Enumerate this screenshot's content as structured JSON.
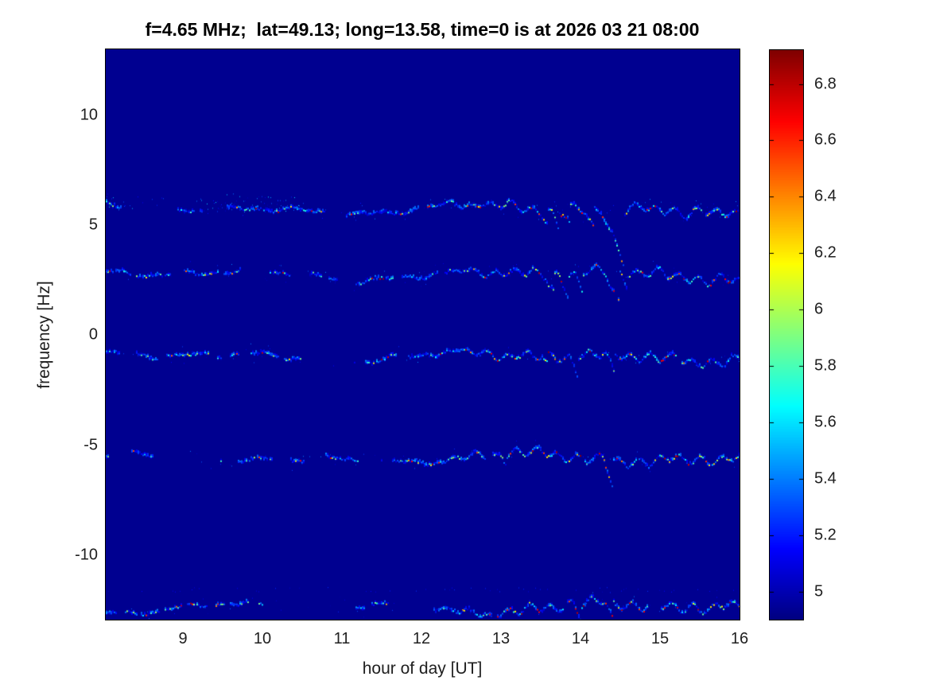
{
  "chart_data": {
    "type": "heatmap",
    "subtype": "doppler-spectrogram",
    "title": "f=4.65 MHz;  lat=49.13; long=13.58, time=0 is at 2026 03 21 08:00",
    "xlabel": "hour of day [UT]",
    "ylabel": "frequency [Hz]",
    "xlim": [
      8.03,
      16
    ],
    "ylim": [
      -12.93,
      13.0
    ],
    "x_ticks": [
      9,
      10,
      11,
      12,
      13,
      14,
      15,
      16
    ],
    "y_ticks": [
      10,
      5,
      0,
      -5,
      -10
    ],
    "grid": false,
    "background_color": "#000090",
    "colorbar": {
      "position": "right",
      "ticks": [
        6.8,
        6.6,
        6.4,
        6.2,
        6,
        5.8,
        5.6,
        5.4,
        5.2,
        5
      ],
      "clim": [
        4.9,
        6.92
      ],
      "colormap": "jet"
    },
    "bands": [
      {
        "name": "doppler-trace-plus5.8Hz",
        "center_hz": 5.75,
        "left_patchiness": 0.5,
        "speckle": 0.22,
        "clouds": [
          {
            "hour_start": 9.2,
            "hour_end": 10.45,
            "spread_hz": 0.85,
            "density": 0.5
          },
          {
            "hour_start": 8.03,
            "hour_end": 8.35,
            "spread_hz": 0.6,
            "density": 0.4
          }
        ],
        "dips": [
          {
            "hour": 13.48,
            "depth_hz": 0.55,
            "width_hr": 0.1
          },
          {
            "hour": 13.62,
            "depth_hz": 0.75,
            "width_hr": 0.1
          },
          {
            "hour": 13.78,
            "depth_hz": 0.8,
            "width_hr": 0.09
          },
          {
            "hour": 14.05,
            "depth_hz": 0.8,
            "width_hr": 0.1
          },
          {
            "hour": 14.25,
            "depth_hz": 2.4,
            "width_hr": 0.3
          }
        ]
      },
      {
        "name": "doppler-trace-plus2.8Hz",
        "center_hz": 2.78,
        "left_patchiness": 0.55,
        "speckle": 0.12,
        "clouds": [],
        "dips": [
          {
            "hour": 13.55,
            "depth_hz": 0.7,
            "width_hr": 0.1
          },
          {
            "hour": 13.72,
            "depth_hz": 1.0,
            "width_hr": 0.12
          },
          {
            "hour": 13.92,
            "depth_hz": 0.9,
            "width_hr": 0.1
          },
          {
            "hour": 14.3,
            "depth_hz": 1.5,
            "width_hr": 0.18
          },
          {
            "hour": 14.5,
            "depth_hz": 0.6,
            "width_hr": 0.08
          }
        ]
      },
      {
        "name": "doppler-trace-minus0.9Hz",
        "center_hz": -0.94,
        "left_patchiness": 0.5,
        "speckle": 0.12,
        "clouds": [],
        "dips": [
          {
            "hour": 13.5,
            "depth_hz": 0.5,
            "width_hr": 0.08
          },
          {
            "hour": 13.85,
            "depth_hz": 0.7,
            "width_hr": 0.1
          },
          {
            "hour": 14.3,
            "depth_hz": 1.0,
            "width_hr": 0.12
          }
        ]
      },
      {
        "name": "doppler-trace-minus5.6Hz",
        "center_hz": -5.58,
        "left_patchiness": 0.35,
        "speckle": 0.13,
        "clouds": [],
        "dips": [
          {
            "hour": 13.0,
            "depth_hz": 0.4,
            "width_hr": 0.06
          },
          {
            "hour": 14.28,
            "depth_hz": 1.2,
            "width_hr": 0.12
          }
        ]
      },
      {
        "name": "doppler-trace-minus12.4Hz",
        "center_hz": -12.35,
        "left_patchiness": 0.45,
        "speckle": 0.15,
        "clouds": [],
        "dips": [
          {
            "hour": 12.05,
            "depth_hz": 0.5,
            "width_hr": 0.08
          },
          {
            "hour": 13.9,
            "depth_hz": 0.6,
            "width_hr": 0.1
          },
          {
            "hour": 14.3,
            "depth_hz": 0.8,
            "width_hr": 0.1
          }
        ]
      }
    ],
    "faint_rows": [
      {
        "freq_hz": -11.55,
        "density": 0.2
      }
    ]
  }
}
